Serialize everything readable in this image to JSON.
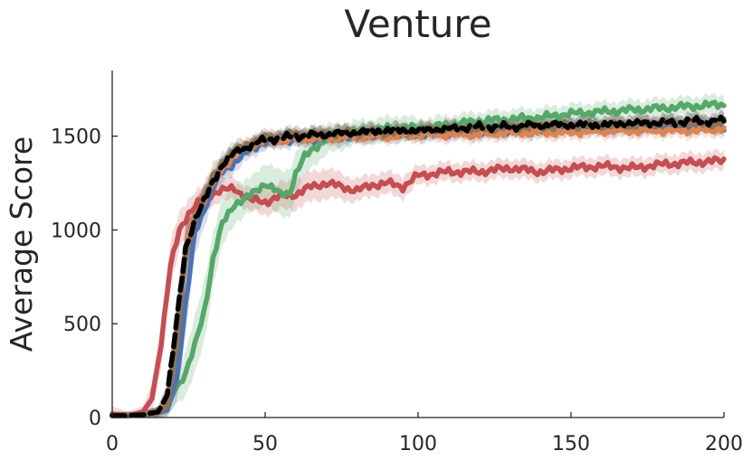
{
  "chart_data": {
    "type": "line",
    "title": "Venture",
    "xlabel": "",
    "ylabel": "Average Score",
    "xlim": [
      0,
      200
    ],
    "ylim": [
      0,
      1850
    ],
    "xticks": [
      0,
      50,
      100,
      150,
      200
    ],
    "yticks": [
      0,
      500,
      1000,
      1500
    ],
    "grid": false,
    "legend": "none",
    "series": [
      {
        "color": "#c44e52",
        "dashed": false,
        "x": [
          0,
          5,
          10,
          13,
          16,
          19,
          22,
          25,
          28,
          31,
          35,
          40,
          45,
          50,
          55,
          60,
          65,
          70,
          75,
          80,
          85,
          90,
          95,
          100,
          110,
          120,
          130,
          140,
          150,
          160,
          170,
          180,
          190,
          200
        ],
        "y": [
          20,
          10,
          30,
          100,
          400,
          800,
          1000,
          1090,
          1140,
          1180,
          1210,
          1220,
          1160,
          1150,
          1180,
          1190,
          1230,
          1250,
          1230,
          1210,
          1240,
          1250,
          1230,
          1290,
          1310,
          1310,
          1330,
          1310,
          1330,
          1340,
          1330,
          1350,
          1360,
          1370
        ],
        "band": [
          40,
          20,
          30,
          80,
          120,
          120,
          100,
          80,
          70,
          60,
          60,
          60,
          60,
          70,
          70,
          80,
          80,
          80,
          70,
          60,
          60,
          60,
          60,
          50,
          50,
          50,
          50,
          50,
          50,
          50,
          50,
          50,
          50,
          50
        ]
      },
      {
        "color": "#55a868",
        "dashed": false,
        "x": [
          0,
          5,
          10,
          15,
          18,
          21,
          24,
          27,
          30,
          33,
          36,
          40,
          45,
          50,
          55,
          58,
          60,
          63,
          66,
          70,
          75,
          80,
          85,
          90,
          95,
          100,
          110,
          120,
          130,
          140,
          150,
          160,
          170,
          180,
          190,
          200
        ],
        "y": [
          10,
          10,
          15,
          25,
          60,
          160,
          240,
          380,
          560,
          850,
          1030,
          1140,
          1180,
          1250,
          1190,
          1200,
          1300,
          1390,
          1440,
          1480,
          1500,
          1520,
          1530,
          1540,
          1550,
          1540,
          1560,
          1580,
          1590,
          1600,
          1620,
          1630,
          1640,
          1650,
          1660,
          1670
        ],
        "band": [
          20,
          20,
          20,
          30,
          50,
          80,
          120,
          150,
          160,
          140,
          120,
          100,
          90,
          110,
          120,
          130,
          110,
          100,
          90,
          80,
          70,
          60,
          60,
          60,
          60,
          50,
          50,
          50,
          50,
          50,
          50,
          50,
          50,
          50,
          50,
          50
        ]
      },
      {
        "color": "#4c72b0",
        "dashed": false,
        "x": [
          0,
          5,
          10,
          15,
          18,
          21,
          24,
          27,
          30,
          33,
          36,
          40,
          45,
          50,
          55,
          60,
          70,
          80,
          90,
          100,
          110,
          120,
          130,
          140,
          150,
          160,
          170,
          180,
          190,
          200
        ],
        "y": [
          10,
          10,
          15,
          25,
          40,
          200,
          600,
          980,
          1110,
          1230,
          1310,
          1360,
          1430,
          1470,
          1480,
          1480,
          1490,
          1500,
          1510,
          1510,
          1520,
          1520,
          1530,
          1530,
          1540,
          1540,
          1540,
          1550,
          1550,
          1550
        ],
        "band": [
          20,
          20,
          20,
          30,
          40,
          120,
          160,
          120,
          90,
          70,
          60,
          50,
          50,
          40,
          40,
          40,
          40,
          40,
          40,
          40,
          40,
          40,
          40,
          40,
          40,
          40,
          40,
          40,
          40,
          40
        ]
      },
      {
        "color": "#dd8452",
        "dashed": false,
        "x": [
          0,
          5,
          10,
          15,
          18,
          21,
          24,
          27,
          30,
          33,
          36,
          40,
          45,
          50,
          55,
          60,
          70,
          80,
          90,
          100,
          110,
          120,
          130,
          140,
          150,
          160,
          170,
          180,
          190,
          200
        ],
        "y": [
          10,
          10,
          15,
          25,
          80,
          450,
          900,
          1070,
          1160,
          1250,
          1330,
          1400,
          1450,
          1480,
          1480,
          1490,
          1490,
          1500,
          1500,
          1510,
          1510,
          1510,
          1520,
          1520,
          1520,
          1530,
          1530,
          1530,
          1530,
          1540
        ],
        "band": [
          20,
          20,
          20,
          30,
          60,
          120,
          120,
          100,
          80,
          70,
          60,
          50,
          40,
          40,
          40,
          40,
          40,
          40,
          40,
          40,
          40,
          40,
          40,
          40,
          40,
          40,
          40,
          40,
          40,
          40
        ]
      },
      {
        "color": "#8c7356",
        "dashed": false,
        "x": [
          0,
          5,
          10,
          15,
          18,
          21,
          24,
          27,
          30,
          33,
          36,
          40,
          45,
          50,
          55,
          60,
          70,
          80,
          90,
          100,
          110,
          120,
          130,
          140,
          150,
          160,
          170,
          180,
          190,
          200
        ],
        "y": [
          10,
          10,
          15,
          25,
          60,
          380,
          850,
          1050,
          1160,
          1280,
          1360,
          1420,
          1460,
          1490,
          1500,
          1510,
          1510,
          1520,
          1520,
          1530,
          1540,
          1540,
          1550,
          1550,
          1560,
          1560,
          1560,
          1570,
          1570,
          1570
        ],
        "band": [
          20,
          20,
          20,
          30,
          50,
          110,
          120,
          100,
          80,
          70,
          60,
          50,
          40,
          40,
          40,
          40,
          40,
          40,
          40,
          40,
          40,
          40,
          40,
          40,
          40,
          40,
          40,
          40,
          40,
          40
        ]
      },
      {
        "color": "#000000",
        "dashed": true,
        "x": [
          0,
          5,
          10,
          15,
          18,
          21,
          24,
          27,
          30,
          33,
          36,
          40,
          45,
          50,
          55,
          60,
          70,
          80,
          90,
          100,
          110,
          120,
          130,
          140,
          150,
          160,
          170,
          180,
          190,
          200
        ],
        "y": [
          10,
          10,
          15,
          30,
          120,
          500,
          900,
          1060,
          1150,
          1260,
          1350,
          1410,
          1450,
          1480,
          1490,
          1500,
          1510,
          1520,
          1530,
          1530,
          1540,
          1550,
          1550,
          1560,
          1560,
          1560,
          1570,
          1570,
          1580,
          1580
        ],
        "band": [
          20,
          20,
          20,
          30,
          60,
          110,
          110,
          90,
          70,
          60,
          50,
          40,
          40,
          40,
          40,
          40,
          40,
          40,
          40,
          40,
          40,
          40,
          40,
          40,
          40,
          40,
          40,
          40,
          40,
          40
        ]
      }
    ]
  }
}
